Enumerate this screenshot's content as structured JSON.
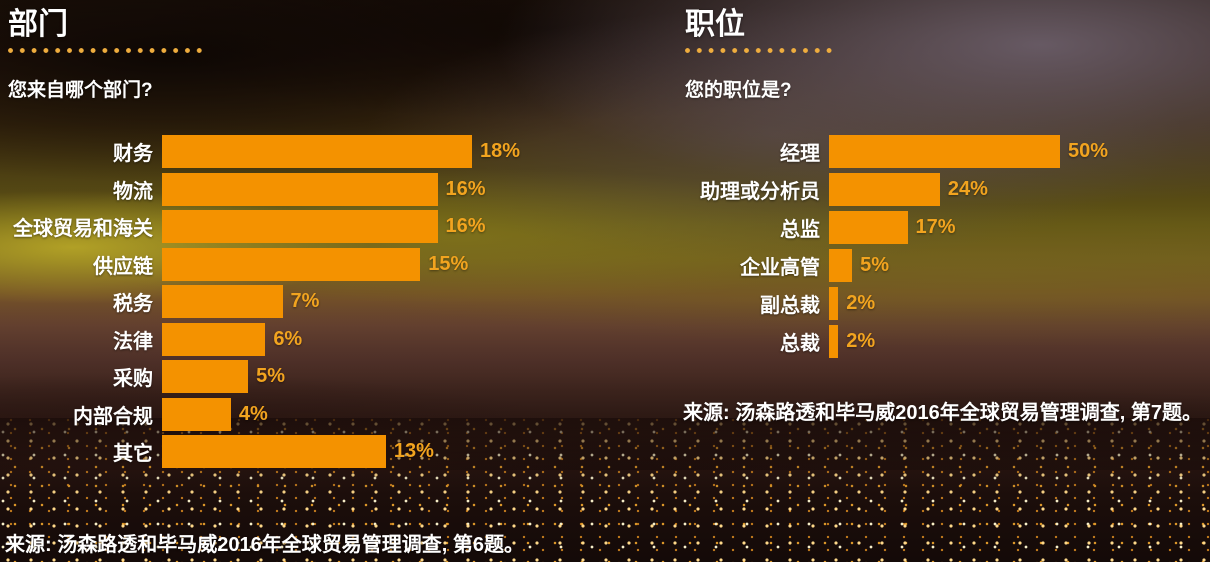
{
  "colors": {
    "bar": "#F49200",
    "value_label": "#F2A41F",
    "dots": "#EFAD3E",
    "text": "#FFFFFF"
  },
  "chart_data": [
    {
      "type": "bar",
      "orientation": "horizontal",
      "title": "部门",
      "question": "您来自哪个部门?",
      "categories": [
        "财务",
        "物流",
        "全球贸易和海关",
        "供应链",
        "税务",
        "法律",
        "采购",
        "内部合规",
        "其它"
      ],
      "values": [
        18,
        16,
        16,
        15,
        7,
        6,
        5,
        4,
        13
      ],
      "labels": [
        "18%",
        "16%",
        "16%",
        "15%",
        "7%",
        "6%",
        "5%",
        "4%",
        "13%"
      ],
      "value_unit": "%",
      "source": "来源: 汤森路透和毕马威2016年全球贸易管理调查, 第6题。",
      "legend": "none",
      "grid": "off"
    },
    {
      "type": "bar",
      "orientation": "horizontal",
      "title": "职位",
      "question": "您的职位是?",
      "categories": [
        "经理",
        "助理或分析员",
        "总监",
        "企业高管",
        "副总裁",
        "总裁"
      ],
      "values": [
        50,
        24,
        17,
        5,
        2,
        2
      ],
      "labels": [
        "50%",
        "24%",
        "17%",
        "5%",
        "2%",
        "2%"
      ],
      "value_unit": "%",
      "source": "来源: 汤森路透和毕马威2016年全球贸易管理调查, 第7题。",
      "legend": "none",
      "grid": "off"
    }
  ]
}
